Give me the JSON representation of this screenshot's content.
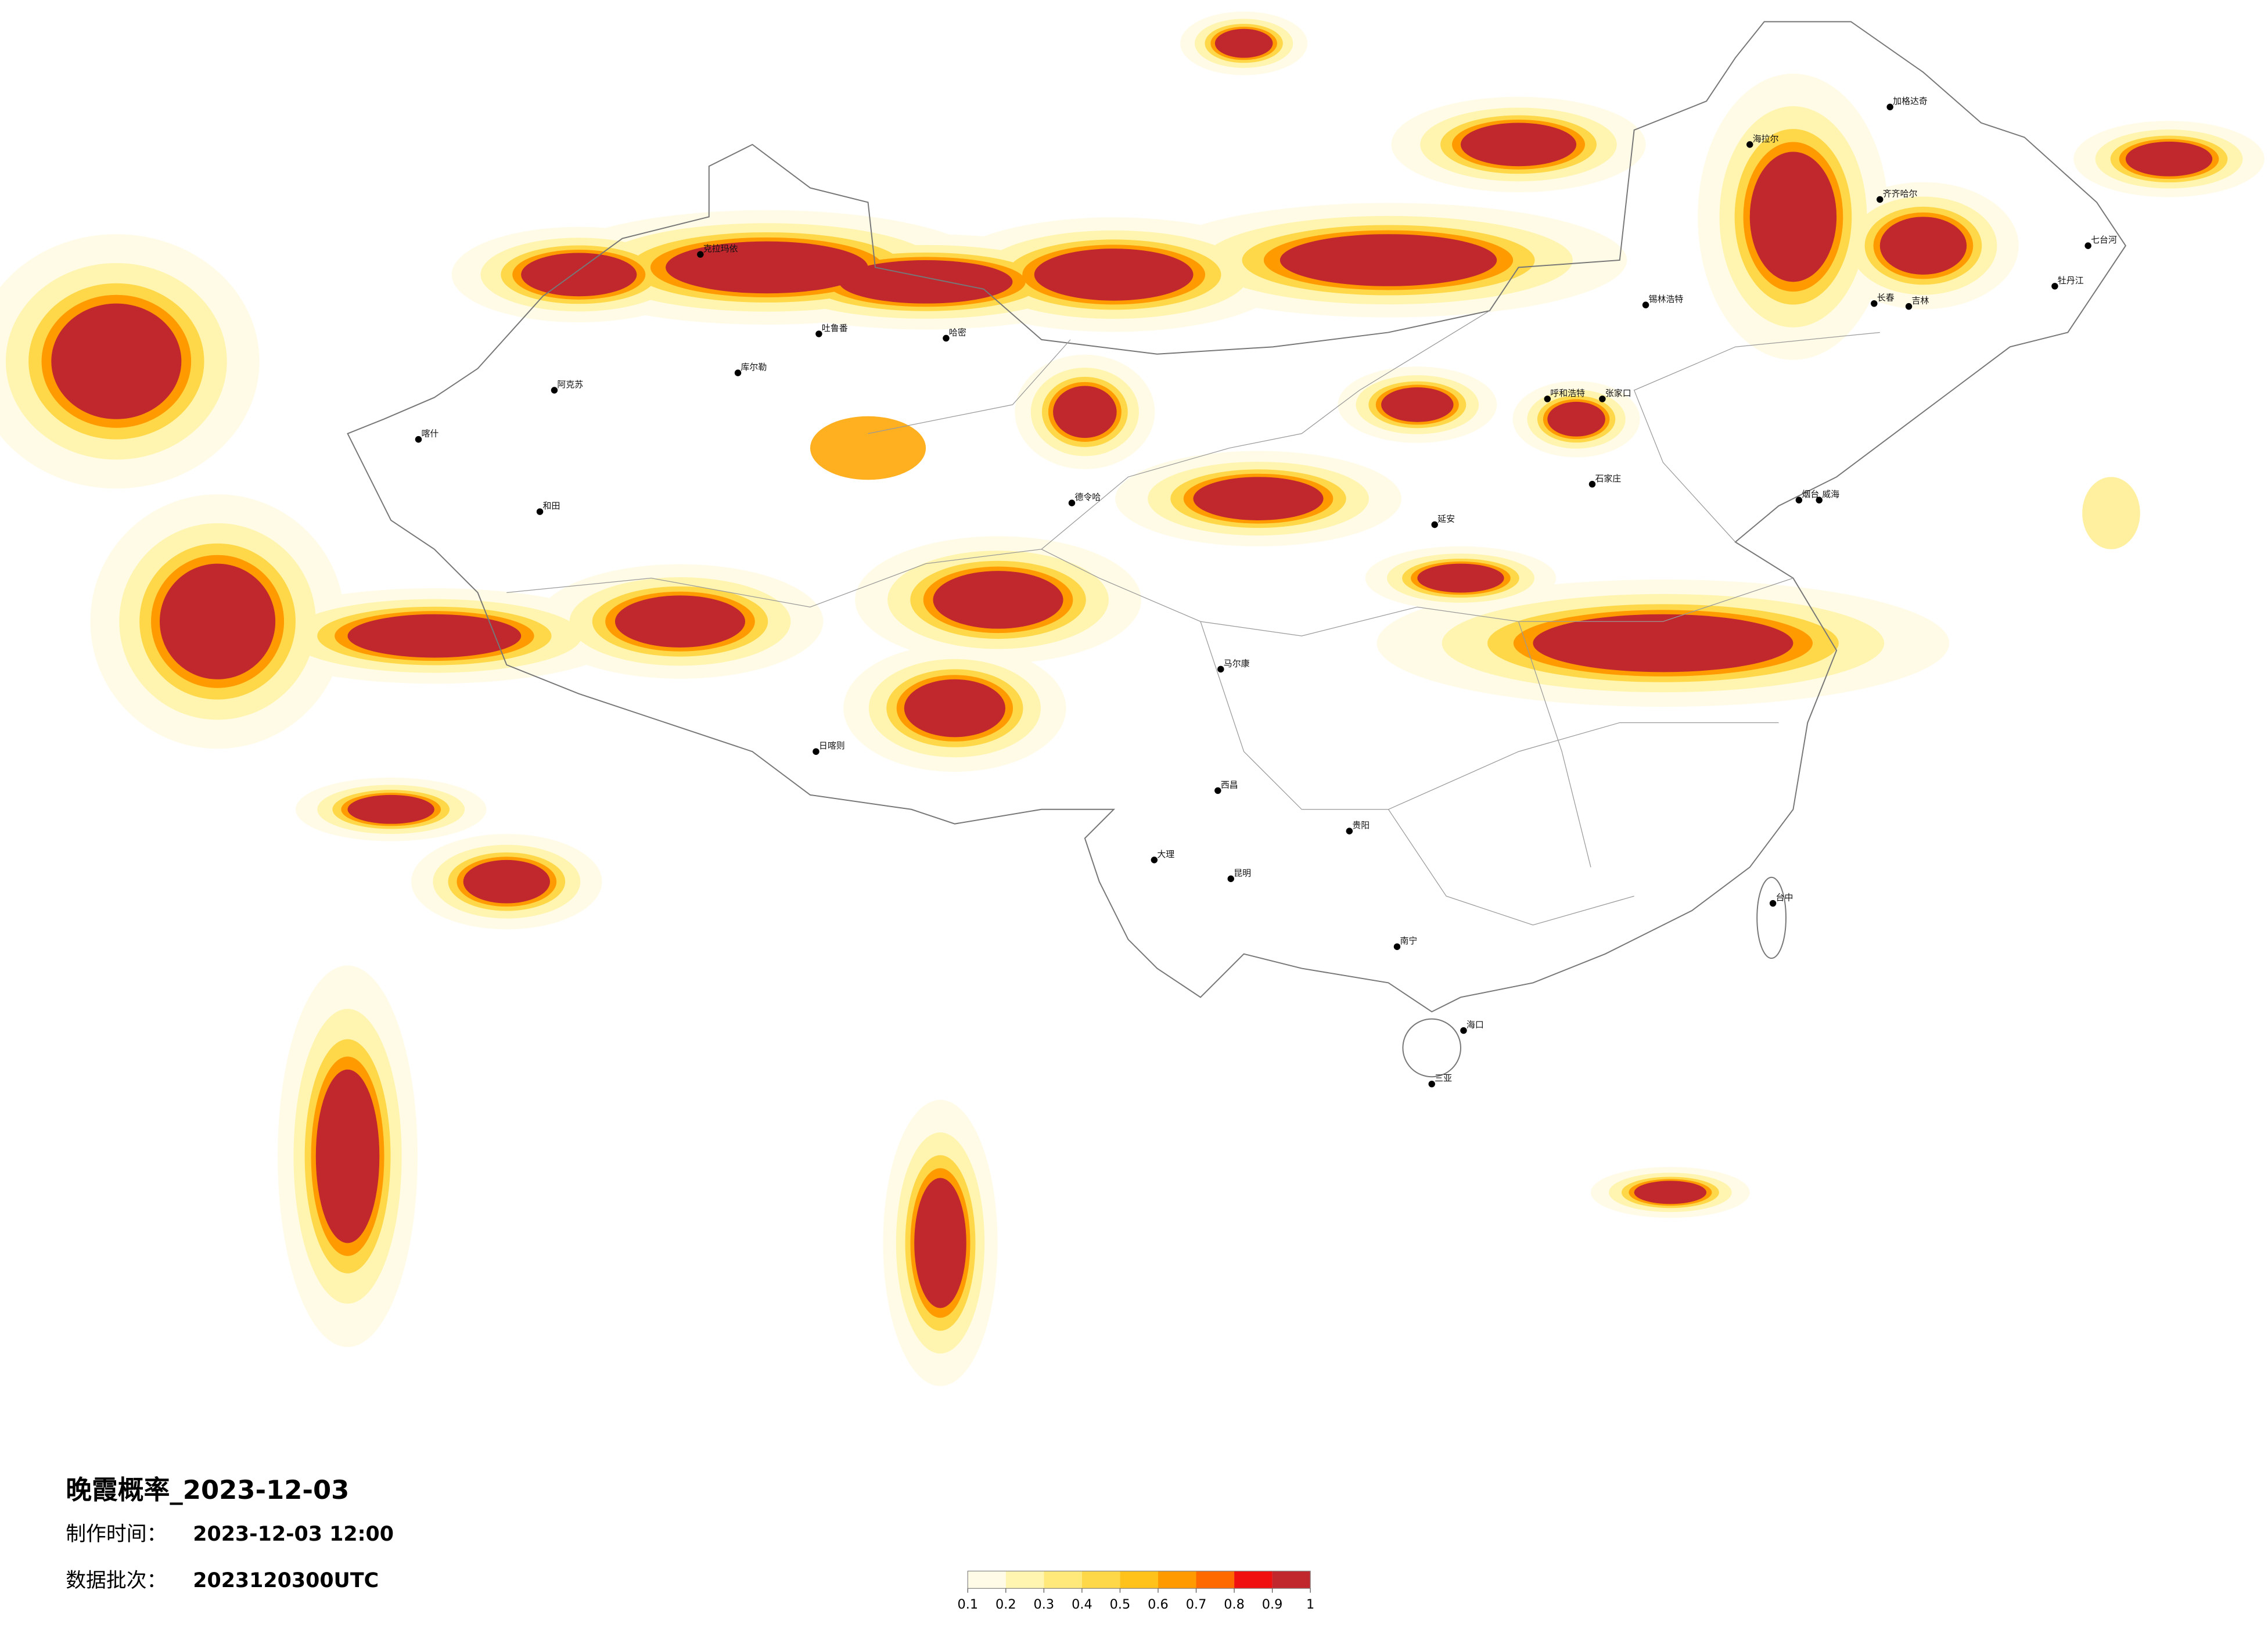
{
  "header": {
    "title": "晚霞概率_2023-12-03",
    "made_label": "制作时间：",
    "made_value": "2023-12-03 12:00",
    "batch_label": "数据批次：",
    "batch_value": "2023120300UTC"
  },
  "colorbar": {
    "ticks": [
      0.1,
      0.2,
      0.3,
      0.4,
      0.5,
      0.6,
      0.7,
      0.8,
      0.9,
      1
    ],
    "colors": [
      "#fffbe6",
      "#fff5b0",
      "#ffe97a",
      "#ffd84a",
      "#ffc21a",
      "#ff9a00",
      "#ff6a00",
      "#f01010",
      "#c0282d"
    ]
  },
  "cities": [
    "阿克苏",
    "和田",
    "喀什",
    "德令哈",
    "克拉玛依",
    "哈密",
    "吐鲁番",
    "库尔勒",
    "日喀则",
    "马尔康",
    "西昌",
    "大理",
    "昆明",
    "贵阳",
    "南宁",
    "海口",
    "三亚",
    "台中",
    "延安",
    "烟台",
    "威海",
    "锡林浩特",
    "呼和浩特",
    "张家口",
    "海拉尔",
    "加格达奇",
    "齐齐哈尔",
    "长春",
    "吉林",
    "七台河",
    "牡丹江",
    "石家庄"
  ]
}
